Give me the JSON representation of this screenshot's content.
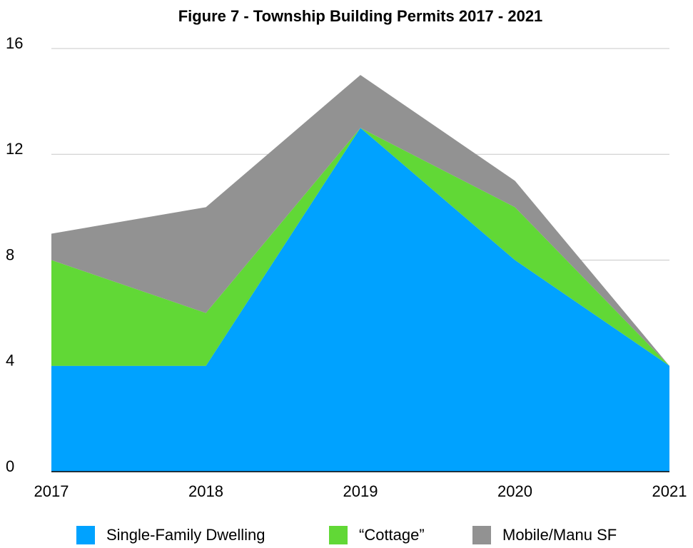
{
  "chart_data": {
    "type": "area",
    "stacked": true,
    "title": "Figure 7 - Township Building Permits 2017 - 2021",
    "categories": [
      "2017",
      "2018",
      "2019",
      "2020",
      "2021"
    ],
    "series": [
      {
        "name": "Single-Family Dwelling",
        "color": "#00a2ff",
        "values": [
          4,
          4,
          13,
          8,
          4
        ]
      },
      {
        "name": "“Cottage”",
        "color": "#61d836",
        "values": [
          4,
          2,
          0,
          2,
          0
        ]
      },
      {
        "name": "Mobile/Manu SF",
        "color": "#929292",
        "values": [
          1,
          4,
          2,
          1,
          0
        ]
      }
    ],
    "ylim": [
      0,
      16
    ],
    "yticks": [
      0,
      4,
      8,
      12,
      16
    ],
    "grid": true,
    "legend": "bottom"
  }
}
